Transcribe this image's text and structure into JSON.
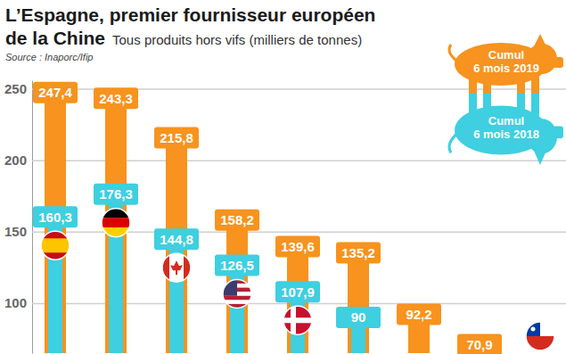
{
  "chart_data": {
    "type": "bar",
    "title": [
      "L’Espagne, premier fournisseur européen",
      "de la Chine"
    ],
    "subtitle": "Tous produits hors vifs (milliers de tonnes)",
    "source": "Source : Inaporc/Ifip",
    "categories": [
      null,
      null,
      null,
      null,
      null,
      null,
      null,
      null,
      null
    ],
    "series": [
      {
        "name": "Cumul 6 mois 2019",
        "color": "#f7931e",
        "values": [
          247.4,
          243.3,
          215.8,
          158.2,
          139.6,
          135.2,
          92.2,
          70.9,
          null
        ],
        "value_labels": [
          "247,4",
          "243,3",
          "215,8",
          "158,2",
          "139,6",
          "135,2",
          "92,2",
          "70,9",
          null
        ]
      },
      {
        "name": "Cumul 6 mois 2018",
        "color": "#3ecfe0",
        "values": [
          160.3,
          176.3,
          144.8,
          126.5,
          107.9,
          90,
          null,
          null,
          null
        ],
        "value_labels": [
          "160,3",
          "176,3",
          "144,8",
          "126,5",
          "107,9",
          "90",
          null,
          null,
          null
        ]
      }
    ],
    "ylim": [
      65,
      256
    ],
    "yticks": [
      100,
      150,
      200,
      250
    ],
    "grid": true,
    "legend": "top-right",
    "data_labels": true,
    "tick_labels": "y"
  }
}
